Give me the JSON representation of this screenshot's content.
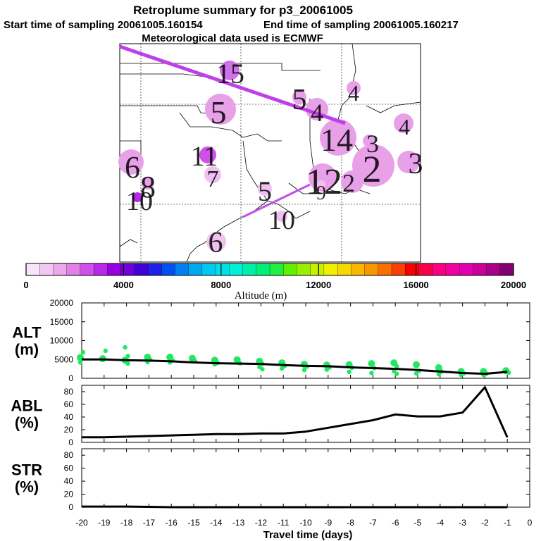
{
  "title": "Retroplume summary for p3_20061005",
  "subtitle_start": "Start time of sampling 20061005.160154",
  "subtitle_end": "End time of sampling 20061005.160217",
  "subtitle_met": "Meteorological data used is ECMWF",
  "colorbar": {
    "title": "Altitude (m)",
    "min": 0,
    "max": 20000,
    "tick_labels": [
      "0",
      "4000",
      "8000",
      "12000",
      "16000",
      "20000"
    ],
    "colors": [
      "#f8e4f8",
      "#f2c8f2",
      "#eaa8ea",
      "#e080e8",
      "#d050e8",
      "#b828e8",
      "#9800e0",
      "#7000d8",
      "#4000d8",
      "#2020e8",
      "#0050f0",
      "#0080f0",
      "#00a8f0",
      "#00c8f0",
      "#00e0e8",
      "#00f0d8",
      "#00f0a8",
      "#00f078",
      "#20f040",
      "#60f000",
      "#98f000",
      "#c8f000",
      "#f0f000",
      "#f8d800",
      "#f8b800",
      "#f89800",
      "#f87000",
      "#f84000",
      "#f80000",
      "#f80048",
      "#f80080",
      "#f000a0",
      "#e000b0",
      "#c80098",
      "#a80088",
      "#800070"
    ]
  },
  "map_labels": [
    {
      "text": "15",
      "color": "#d070e8"
    },
    {
      "text": "5",
      "color": "#e8a0e8"
    },
    {
      "text": "5",
      "color": "#e8a0e8"
    },
    {
      "text": "4",
      "color": "#e8a0e8"
    },
    {
      "text": "4",
      "color": "#e8a0e8"
    },
    {
      "text": "4",
      "color": "#e8a0e8"
    },
    {
      "text": "14",
      "color": "#e8a0e8"
    },
    {
      "text": "3",
      "color": "#e8a0e8"
    },
    {
      "text": "2",
      "color": "#e8a0e8"
    },
    {
      "text": "3",
      "color": "#e8a0e8"
    },
    {
      "text": "11",
      "color": "#d050e8"
    },
    {
      "text": "7",
      "color": "#f0c0f0"
    },
    {
      "text": "6",
      "color": "#e8a0e8"
    },
    {
      "text": "8",
      "color": "#e8a0e8"
    },
    {
      "text": "10",
      "color": "#b828e8"
    },
    {
      "text": "5",
      "color": "#f0c0f0"
    },
    {
      "text": "12",
      "color": "#e8a0e8"
    },
    {
      "text": "2",
      "color": "#e8a0e8"
    },
    {
      "text": "10",
      "color": "#f0c0f0"
    },
    {
      "text": "6",
      "color": "#f0c0f0"
    },
    {
      "text": "9",
      "color": "#f0c0f0"
    }
  ],
  "chart_data": [
    {
      "type": "line",
      "panel_label": "ALT (m)",
      "x": [
        -20,
        -19,
        -18,
        -17,
        -16,
        -15,
        -14,
        -13,
        -12,
        -11,
        -10,
        -9,
        -8,
        -7,
        -6,
        -5,
        -4,
        -3,
        -2,
        -1
      ],
      "y": [
        5000,
        5000,
        4800,
        4700,
        4500,
        4200,
        4000,
        3900,
        3800,
        3500,
        3300,
        3200,
        2900,
        2700,
        2500,
        2200,
        1800,
        1400,
        1200,
        1700
      ],
      "scatter": [
        {
          "x": -20,
          "y": [
            5500,
            6900,
            4200
          ]
        },
        {
          "x": -19,
          "y": [
            5200,
            7300
          ]
        },
        {
          "x": -18,
          "y": [
            4800,
            5900,
            8200,
            3900
          ]
        },
        {
          "x": -17,
          "y": [
            5600,
            4900,
            4300
          ]
        },
        {
          "x": -16,
          "y": [
            5600,
            4700,
            4200
          ]
        },
        {
          "x": -15,
          "y": [
            5300,
            4500
          ]
        },
        {
          "x": -14,
          "y": [
            4800,
            4100,
            3700
          ]
        },
        {
          "x": -13,
          "y": [
            4900,
            4000
          ]
        },
        {
          "x": -12,
          "y": [
            4500,
            3800,
            3000,
            2400
          ]
        },
        {
          "x": -11,
          "y": [
            4100,
            3300,
            2600
          ]
        },
        {
          "x": -10,
          "y": [
            3700,
            3100,
            2200
          ]
        },
        {
          "x": -9,
          "y": [
            3500,
            2900,
            2300
          ]
        },
        {
          "x": -8,
          "y": [
            3600,
            2800,
            1700
          ]
        },
        {
          "x": -7,
          "y": [
            3900,
            2700,
            1400
          ]
        },
        {
          "x": -6,
          "y": [
            4100,
            3200,
            1900,
            1200
          ]
        },
        {
          "x": -5,
          "y": [
            3600,
            2000,
            1300
          ]
        },
        {
          "x": -4,
          "y": [
            2800,
            1800,
            1100
          ]
        },
        {
          "x": -3,
          "y": [
            1800,
            1300,
            900
          ]
        },
        {
          "x": -2,
          "y": [
            1800,
            1200,
            900
          ]
        },
        {
          "x": -1,
          "y": [
            2000,
            1500
          ]
        }
      ],
      "ylim": [
        0,
        20000
      ],
      "yticks": [
        "0",
        "5000",
        "10000",
        "15000",
        "20000"
      ]
    },
    {
      "type": "line",
      "panel_label": "ABL (%)",
      "x": [
        -20,
        -19,
        -18,
        -17,
        -16,
        -15,
        -14,
        -13,
        -12,
        -11,
        -10,
        -9,
        -8,
        -7,
        -6,
        -5,
        -4,
        -3,
        -2,
        -1
      ],
      "y": [
        8,
        8,
        9,
        10,
        11,
        12,
        13,
        13,
        14,
        14,
        17,
        23,
        29,
        35,
        44,
        41,
        41,
        47,
        87,
        8
      ],
      "ylim": [
        0,
        90
      ],
      "yticks": [
        "0",
        "20",
        "40",
        "60",
        "80"
      ]
    },
    {
      "type": "line",
      "panel_label": "STR (%)",
      "x": [
        -20,
        -19,
        -18,
        -17,
        -16,
        -15,
        -14,
        -13,
        -12,
        -11,
        -10,
        -9,
        -8,
        -7,
        -6,
        -5,
        -4,
        -3,
        -2,
        -1
      ],
      "y": [
        1,
        1,
        1,
        0.5,
        0,
        0,
        0,
        0,
        0,
        0,
        0,
        0,
        0,
        0,
        0,
        0,
        0,
        0,
        0,
        0
      ],
      "ylim": [
        0,
        90
      ],
      "yticks": [
        "0",
        "20",
        "40",
        "60",
        "80"
      ]
    }
  ],
  "x_axis": {
    "xlabel": "Travel time (days)",
    "xlim": [
      -20,
      0
    ],
    "tick_labels": [
      "-20",
      "-19",
      "-18",
      "-17",
      "-16",
      "-15",
      "-14",
      "-13",
      "-12",
      "-11",
      "-10",
      "-9",
      "-8",
      "-7",
      "-6",
      "-5",
      "-4",
      "-3",
      "-2",
      "-1",
      "0"
    ]
  }
}
